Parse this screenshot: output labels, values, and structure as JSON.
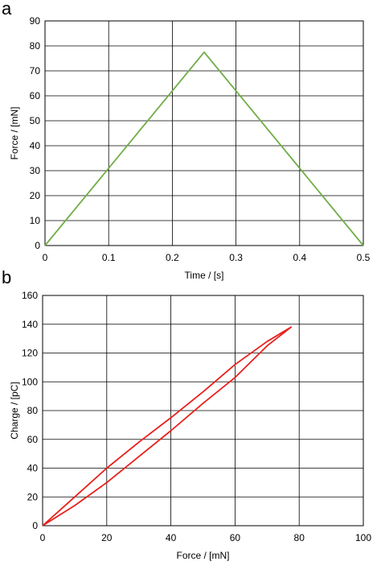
{
  "chart_data": [
    {
      "panel_label": "a",
      "type": "line",
      "title": "",
      "xlabel": "Time / [s]",
      "ylabel": "Force / [mN]",
      "xlim": [
        0,
        0.5
      ],
      "ylim": [
        0,
        90
      ],
      "x_ticks": [
        "0",
        "0.1",
        "0.2",
        "0.3",
        "0.4",
        "0.5"
      ],
      "y_ticks": [
        "0",
        "10",
        "20",
        "30",
        "40",
        "50",
        "60",
        "70",
        "80",
        "90"
      ],
      "grid": true,
      "legend": "none",
      "series": [
        {
          "color": "#70ad47",
          "x": [
            0,
            0.25,
            0.5
          ],
          "y": [
            0,
            77.5,
            0
          ]
        }
      ]
    },
    {
      "panel_label": "b",
      "type": "line",
      "title": "",
      "xlabel": "Force / [mN]",
      "ylabel": "Charge / [pC]",
      "xlim": [
        0,
        100
      ],
      "ylim": [
        0,
        160
      ],
      "x_ticks": [
        "0",
        "20",
        "40",
        "60",
        "80",
        "100"
      ],
      "y_ticks": [
        "0",
        "20",
        "40",
        "60",
        "80",
        "100",
        "120",
        "140",
        "160"
      ],
      "grid": true,
      "legend": "none",
      "series": [
        {
          "color": "#e8201c",
          "x": [
            0,
            10,
            20,
            30,
            40,
            50,
            60,
            70,
            77.5,
            70,
            60,
            50,
            40,
            30,
            20,
            10,
            0
          ],
          "y": [
            0,
            20,
            40,
            58,
            75,
            93,
            112,
            128,
            138,
            125,
            103,
            85,
            66,
            48,
            30,
            14,
            0
          ]
        }
      ]
    }
  ]
}
